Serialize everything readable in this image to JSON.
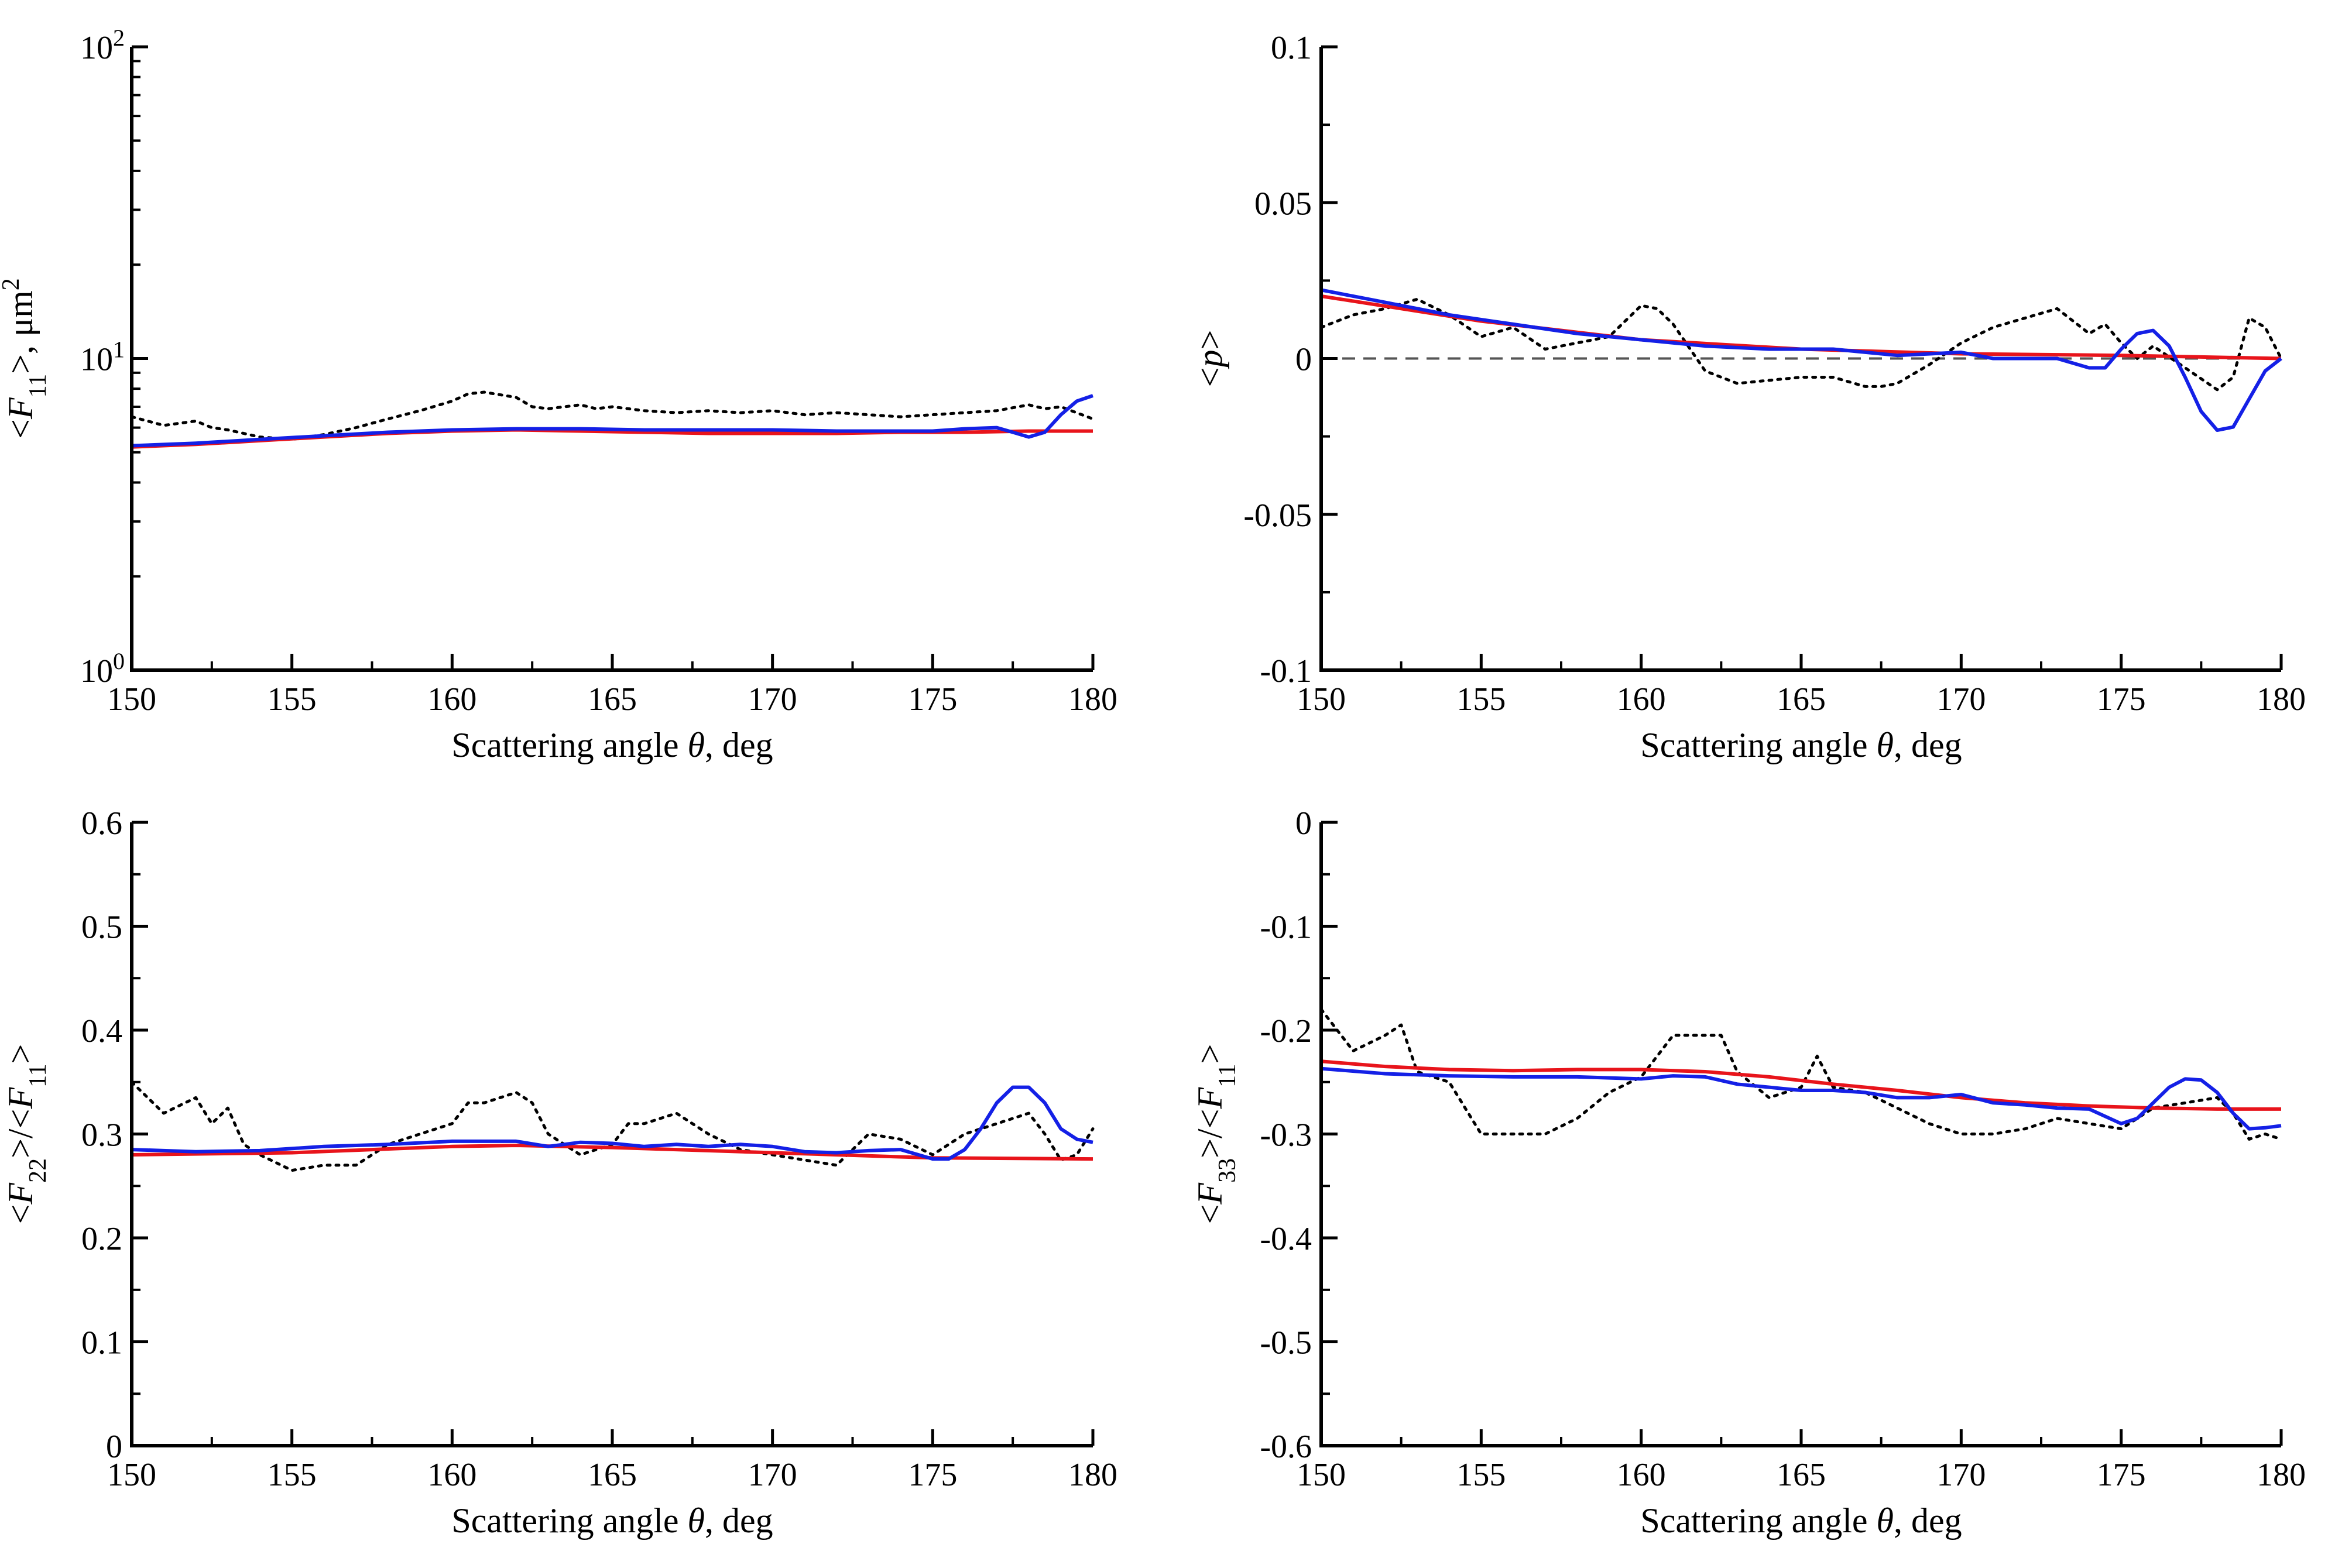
{
  "colors": {
    "red": "#e8141b",
    "blue": "#1420e6",
    "black": "#000000",
    "dashed": "#555555"
  },
  "chart_data": [
    {
      "type": "line",
      "id": "f11",
      "title": "",
      "xlabel_parts": [
        "Scattering angle ",
        "θ",
        ", deg"
      ],
      "ylabel_parts": [
        "<",
        "F",
        "11",
        ">, μm",
        "2"
      ],
      "xlim": [
        150,
        180
      ],
      "ylim": [
        1,
        100
      ],
      "yscale": "log",
      "grid": false,
      "legend": "none",
      "xticks": [
        150,
        155,
        160,
        165,
        170,
        175,
        180
      ],
      "xtick_labels": [
        "150",
        "155",
        "160",
        "165",
        "170",
        "175",
        "180"
      ],
      "yticks": [
        1,
        10,
        100
      ],
      "ytick_labels": [
        [
          "10",
          "0"
        ],
        [
          "10",
          "1"
        ],
        [
          "10",
          "2"
        ]
      ],
      "series": [
        {
          "color": "black",
          "style": "dotted",
          "x": [
            150,
            151,
            152,
            152.5,
            153,
            154,
            155,
            156,
            157,
            158,
            159,
            160,
            160.5,
            161,
            162,
            162.5,
            163,
            164,
            164.5,
            165,
            166,
            167,
            168,
            169,
            170,
            171,
            172,
            173,
            174,
            175,
            176,
            177,
            178,
            178.5,
            179,
            180
          ],
          "y": [
            6.5,
            6.1,
            6.3,
            6.0,
            5.9,
            5.6,
            5.5,
            5.7,
            6.0,
            6.4,
            6.8,
            7.3,
            7.7,
            7.8,
            7.5,
            7.0,
            6.9,
            7.1,
            6.9,
            7.0,
            6.8,
            6.7,
            6.8,
            6.7,
            6.8,
            6.6,
            6.7,
            6.6,
            6.5,
            6.6,
            6.7,
            6.8,
            7.1,
            6.9,
            7.0,
            6.4
          ]
        },
        {
          "color": "red",
          "style": "solid",
          "x": [
            150,
            152,
            154,
            156,
            158,
            160,
            162,
            164,
            166,
            168,
            170,
            172,
            174,
            176,
            178,
            180
          ],
          "y": [
            5.2,
            5.3,
            5.45,
            5.6,
            5.75,
            5.85,
            5.9,
            5.85,
            5.8,
            5.75,
            5.75,
            5.75,
            5.8,
            5.8,
            5.85,
            5.85
          ]
        },
        {
          "color": "blue",
          "style": "solid",
          "x": [
            150,
            152,
            154,
            156,
            158,
            160,
            162,
            164,
            166,
            168,
            170,
            172,
            174,
            175,
            176,
            177,
            177.5,
            178,
            178.5,
            179,
            179.5,
            180
          ],
          "y": [
            5.25,
            5.35,
            5.5,
            5.65,
            5.8,
            5.9,
            5.95,
            5.95,
            5.9,
            5.9,
            5.9,
            5.85,
            5.85,
            5.85,
            5.95,
            6.0,
            5.8,
            5.6,
            5.8,
            6.6,
            7.3,
            7.6
          ]
        }
      ]
    },
    {
      "type": "line",
      "id": "p",
      "title": "",
      "xlabel_parts": [
        "Scattering angle ",
        "θ",
        ", deg"
      ],
      "ylabel_parts": [
        "<",
        "p",
        ">"
      ],
      "xlim": [
        150,
        180
      ],
      "ylim": [
        -0.1,
        0.1
      ],
      "grid": false,
      "legend": "none",
      "zero_line": true,
      "xticks": [
        150,
        155,
        160,
        165,
        170,
        175,
        180
      ],
      "xtick_labels": [
        "150",
        "155",
        "160",
        "165",
        "170",
        "175",
        "180"
      ],
      "yticks": [
        -0.1,
        -0.05,
        0,
        0.05,
        0.1
      ],
      "ytick_labels": [
        "-0.1",
        "-0.05",
        "0",
        "0.05",
        "0.1"
      ],
      "series": [
        {
          "color": "black",
          "style": "dotted",
          "x": [
            150,
            151,
            152,
            153,
            154,
            155,
            156,
            157,
            158,
            159,
            159.5,
            160,
            160.5,
            161,
            162,
            163,
            164,
            165,
            166,
            167,
            167.5,
            168,
            169,
            170,
            171,
            172,
            173,
            174,
            174.5,
            175,
            175.5,
            176,
            177,
            178,
            178.5,
            179,
            179.5,
            180
          ],
          "y": [
            0.01,
            0.014,
            0.016,
            0.019,
            0.014,
            0.007,
            0.01,
            0.003,
            0.005,
            0.007,
            0.012,
            0.017,
            0.016,
            0.011,
            -0.004,
            -0.008,
            -0.007,
            -0.006,
            -0.006,
            -0.009,
            -0.009,
            -0.008,
            -0.002,
            0.005,
            0.01,
            0.013,
            0.016,
            0.008,
            0.011,
            0.005,
            0.0,
            0.004,
            -0.003,
            -0.01,
            -0.006,
            0.013,
            0.01,
            0.0
          ]
        },
        {
          "color": "red",
          "style": "solid",
          "x": [
            150,
            155,
            160,
            165,
            170,
            175,
            180
          ],
          "y": [
            0.02,
            0.012,
            0.006,
            0.003,
            0.0015,
            0.001,
            0.0
          ]
        },
        {
          "color": "blue",
          "style": "solid",
          "x": [
            150,
            152,
            154,
            156,
            158,
            160,
            162,
            164,
            166,
            168,
            170,
            171,
            172,
            173,
            174,
            174.5,
            175,
            175.5,
            176,
            176.5,
            177,
            177.5,
            178,
            178.5,
            179,
            179.5,
            180
          ],
          "y": [
            0.022,
            0.018,
            0.014,
            0.011,
            0.008,
            0.006,
            0.004,
            0.003,
            0.003,
            0.001,
            0.002,
            0.0,
            0.0,
            0.0,
            -0.003,
            -0.003,
            0.003,
            0.008,
            0.009,
            0.004,
            -0.006,
            -0.017,
            -0.023,
            -0.022,
            -0.013,
            -0.004,
            0.0
          ]
        }
      ]
    },
    {
      "type": "line",
      "id": "f22",
      "title": "",
      "xlabel_parts": [
        "Scattering angle ",
        "θ",
        ", deg"
      ],
      "ylabel_parts": [
        "<",
        "F",
        "22",
        ">/<",
        "F",
        "11",
        ">"
      ],
      "xlim": [
        150,
        180
      ],
      "ylim": [
        0,
        0.6
      ],
      "grid": false,
      "legend": "none",
      "xticks": [
        150,
        155,
        160,
        165,
        170,
        175,
        180
      ],
      "xtick_labels": [
        "150",
        "155",
        "160",
        "165",
        "170",
        "175",
        "180"
      ],
      "yticks": [
        0,
        0.1,
        0.2,
        0.3,
        0.4,
        0.5,
        0.6
      ],
      "ytick_labels": [
        "0",
        "0.1",
        "0.2",
        "0.3",
        "0.4",
        "0.5",
        "0.6"
      ],
      "series": [
        {
          "color": "black",
          "style": "dotted",
          "x": [
            150,
            151,
            152,
            152.5,
            153,
            153.5,
            154,
            155,
            156,
            157,
            158,
            159,
            160,
            160.5,
            161,
            162,
            162.5,
            163,
            164,
            164.5,
            165,
            165.5,
            166,
            167,
            168,
            169,
            170,
            171,
            172,
            173,
            174,
            175,
            176,
            177,
            178,
            178.5,
            179,
            179.5,
            180
          ],
          "y": [
            0.35,
            0.32,
            0.335,
            0.31,
            0.325,
            0.29,
            0.28,
            0.265,
            0.27,
            0.27,
            0.29,
            0.3,
            0.31,
            0.33,
            0.33,
            0.34,
            0.33,
            0.3,
            0.28,
            0.285,
            0.29,
            0.31,
            0.31,
            0.32,
            0.3,
            0.285,
            0.28,
            0.275,
            0.27,
            0.3,
            0.295,
            0.28,
            0.3,
            0.31,
            0.32,
            0.3,
            0.275,
            0.28,
            0.305
          ]
        },
        {
          "color": "red",
          "style": "solid",
          "x": [
            150,
            155,
            160,
            162,
            165,
            170,
            175,
            180
          ],
          "y": [
            0.28,
            0.282,
            0.288,
            0.289,
            0.287,
            0.282,
            0.277,
            0.276
          ]
        },
        {
          "color": "blue",
          "style": "solid",
          "x": [
            150,
            152,
            154,
            156,
            158,
            160,
            162,
            163,
            164,
            165,
            166,
            167,
            168,
            169,
            170,
            171,
            172,
            173,
            174,
            175,
            175.5,
            176,
            176.5,
            177,
            177.5,
            178,
            178.5,
            179,
            179.5,
            180
          ],
          "y": [
            0.285,
            0.283,
            0.284,
            0.288,
            0.29,
            0.293,
            0.293,
            0.288,
            0.292,
            0.291,
            0.288,
            0.29,
            0.288,
            0.29,
            0.288,
            0.283,
            0.282,
            0.284,
            0.285,
            0.276,
            0.276,
            0.285,
            0.305,
            0.33,
            0.345,
            0.345,
            0.33,
            0.305,
            0.295,
            0.292
          ]
        }
      ]
    },
    {
      "type": "line",
      "id": "f33",
      "title": "",
      "xlabel_parts": [
        "Scattering angle ",
        "θ",
        ", deg"
      ],
      "ylabel_parts": [
        "<",
        "F",
        "33",
        ">/<",
        "F",
        "11",
        ">"
      ],
      "xlim": [
        150,
        180
      ],
      "ylim": [
        -0.6,
        0
      ],
      "grid": false,
      "legend": "none",
      "xticks": [
        150,
        155,
        160,
        165,
        170,
        175,
        180
      ],
      "xtick_labels": [
        "150",
        "155",
        "160",
        "165",
        "170",
        "175",
        "180"
      ],
      "yticks": [
        -0.6,
        -0.5,
        -0.4,
        -0.3,
        -0.2,
        -0.1,
        0
      ],
      "ytick_labels": [
        "-0.6",
        "-0.5",
        "-0.4",
        "-0.3",
        "-0.2",
        "-0.1",
        "0"
      ],
      "series": [
        {
          "color": "black",
          "style": "dotted",
          "x": [
            150,
            151,
            152,
            152.5,
            153,
            154,
            155,
            156,
            157,
            158,
            159,
            160,
            160.5,
            161,
            162,
            162.5,
            163,
            164,
            165,
            165.5,
            166,
            167,
            168,
            169,
            170,
            171,
            172,
            173,
            174,
            175,
            176,
            177,
            178,
            178.5,
            179,
            179.5,
            180
          ],
          "y": [
            -0.18,
            -0.22,
            -0.205,
            -0.195,
            -0.24,
            -0.25,
            -0.3,
            -0.3,
            -0.3,
            -0.285,
            -0.26,
            -0.245,
            -0.225,
            -0.205,
            -0.205,
            -0.205,
            -0.24,
            -0.265,
            -0.255,
            -0.225,
            -0.255,
            -0.26,
            -0.275,
            -0.29,
            -0.3,
            -0.3,
            -0.295,
            -0.285,
            -0.29,
            -0.295,
            -0.275,
            -0.27,
            -0.265,
            -0.28,
            -0.305,
            -0.3,
            -0.305
          ]
        },
        {
          "color": "red",
          "style": "solid",
          "x": [
            150,
            152,
            154,
            156,
            158,
            160,
            162,
            164,
            166,
            168,
            170,
            172,
            174,
            176,
            178,
            180
          ],
          "y": [
            -0.23,
            -0.235,
            -0.238,
            -0.239,
            -0.238,
            -0.238,
            -0.24,
            -0.245,
            -0.252,
            -0.258,
            -0.265,
            -0.27,
            -0.273,
            -0.275,
            -0.276,
            -0.276
          ]
        },
        {
          "color": "blue",
          "style": "solid",
          "x": [
            150,
            152,
            154,
            156,
            158,
            160,
            161,
            162,
            163,
            164,
            165,
            166,
            167,
            168,
            169,
            170,
            171,
            172,
            173,
            174,
            175,
            175.5,
            176,
            176.5,
            177,
            177.5,
            178,
            178.5,
            179,
            179.5,
            180
          ],
          "y": [
            -0.237,
            -0.242,
            -0.244,
            -0.245,
            -0.245,
            -0.247,
            -0.244,
            -0.245,
            -0.252,
            -0.255,
            -0.258,
            -0.258,
            -0.26,
            -0.265,
            -0.265,
            -0.262,
            -0.27,
            -0.272,
            -0.275,
            -0.276,
            -0.29,
            -0.285,
            -0.27,
            -0.255,
            -0.247,
            -0.248,
            -0.26,
            -0.28,
            -0.295,
            -0.294,
            -0.292
          ]
        }
      ]
    }
  ]
}
